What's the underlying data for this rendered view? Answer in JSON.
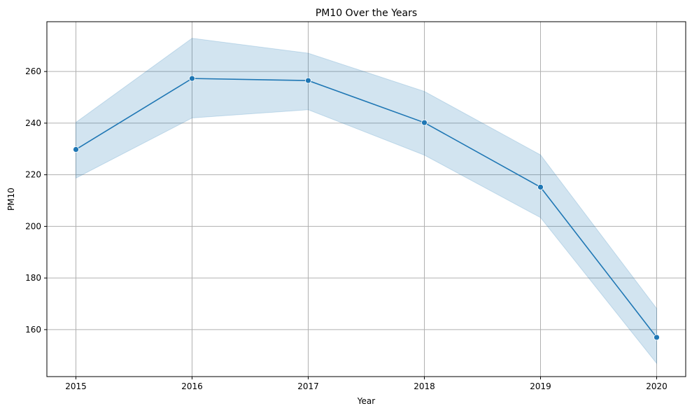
{
  "chart_data": {
    "type": "line",
    "title": "PM10 Over the Years",
    "xlabel": "Year",
    "ylabel": "PM10",
    "x": [
      2015,
      2016,
      2017,
      2018,
      2019,
      2020
    ],
    "series": [
      {
        "values": [
          229.8,
          257.3,
          256.5,
          240.2,
          215.2,
          157.0
        ],
        "ci_lower": [
          218.7,
          242.0,
          245.2,
          227.6,
          203.4,
          146.9
        ],
        "ci_upper": [
          240.3,
          272.9,
          267.1,
          252.3,
          227.7,
          168.2
        ],
        "color": "#1f77b4"
      }
    ],
    "xlim": [
      2014.75,
      2020.25
    ],
    "ylim": [
      141.8,
      279.3
    ],
    "xticks": [
      2015,
      2016,
      2017,
      2018,
      2019,
      2020
    ],
    "yticks": [
      160,
      180,
      200,
      220,
      240,
      260
    ],
    "grid": true,
    "band_color": "#1f77b4",
    "grid_color": "#b0b0b0"
  }
}
